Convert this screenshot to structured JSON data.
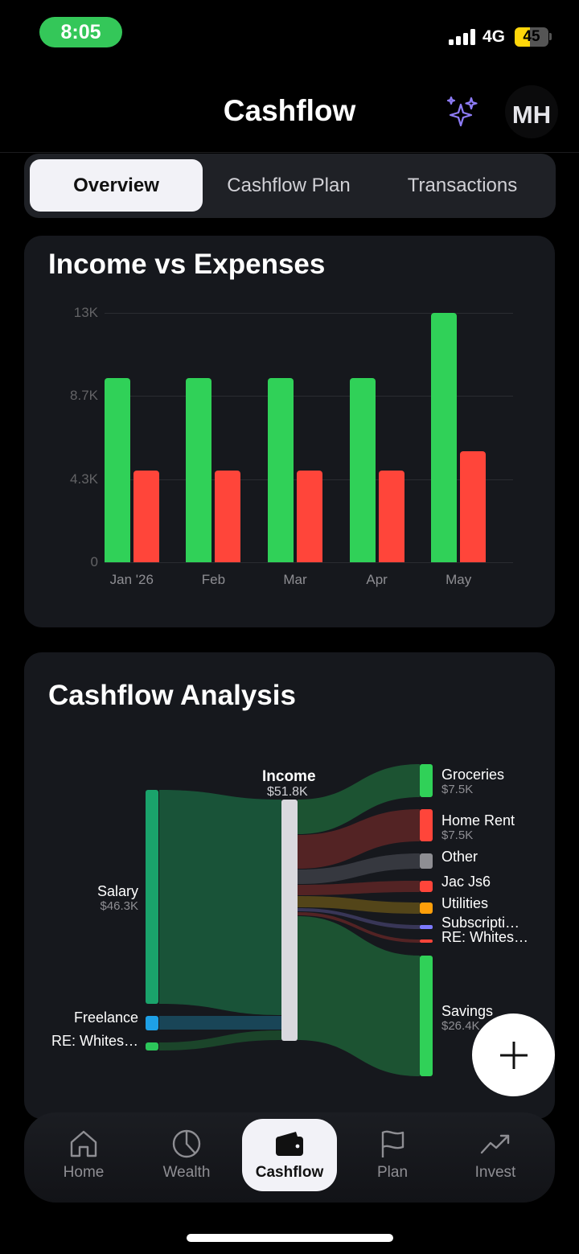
{
  "status_bar": {
    "time": "8:05",
    "network": "4G",
    "battery": "45"
  },
  "header": {
    "title": "Cashflow",
    "avatar_initials": "MH"
  },
  "tabs": [
    {
      "label": "Overview",
      "active": true
    },
    {
      "label": "Cashflow Plan",
      "active": false
    },
    {
      "label": "Transactions",
      "active": false
    }
  ],
  "colors": {
    "income": "#30d158",
    "expense": "#ff453a",
    "accent": "#7b61ff"
  },
  "income_vs_expenses": {
    "title": "Income vs Expenses",
    "chart_data": {
      "type": "bar",
      "categories": [
        "Jan '26",
        "Feb",
        "Mar",
        "Apr",
        "May"
      ],
      "series": [
        {
          "values": [
            9600,
            9600,
            9600,
            9600,
            13000
          ]
        },
        {
          "values": [
            4800,
            4800,
            4800,
            4800,
            5800
          ]
        }
      ],
      "ytick_labels": [
        "13K",
        "8.7K",
        "4.3K",
        "0"
      ],
      "ylim": [
        0,
        13000
      ],
      "grid": true
    }
  },
  "cashflow_analysis": {
    "title": "Cashflow Analysis",
    "center": {
      "label": "Income",
      "value": "$51.8K"
    },
    "sources": [
      {
        "label": "Salary",
        "value": "$46.3K"
      },
      {
        "label": "Freelance",
        "value": ""
      },
      {
        "label": "RE: Whites…",
        "value": ""
      }
    ],
    "targets": [
      {
        "label": "Groceries",
        "value": "$7.5K"
      },
      {
        "label": "Home Rent",
        "value": "$7.5K"
      },
      {
        "label": "Other",
        "value": ""
      },
      {
        "label": "Jac Js6",
        "value": ""
      },
      {
        "label": "Utilities",
        "value": ""
      },
      {
        "label": "Subscripti…",
        "value": ""
      },
      {
        "label": "RE: Whites…",
        "value": ""
      },
      {
        "label": "Savings",
        "value": "$26.4K"
      }
    ]
  },
  "bottom_nav": [
    {
      "label": "Home",
      "icon": "home-icon",
      "active": false
    },
    {
      "label": "Wealth",
      "icon": "pie-chart-icon",
      "active": false
    },
    {
      "label": "Cashflow",
      "icon": "wallet-icon",
      "active": true
    },
    {
      "label": "Plan",
      "icon": "flag-icon",
      "active": false
    },
    {
      "label": "Invest",
      "icon": "trending-up-icon",
      "active": false
    }
  ]
}
